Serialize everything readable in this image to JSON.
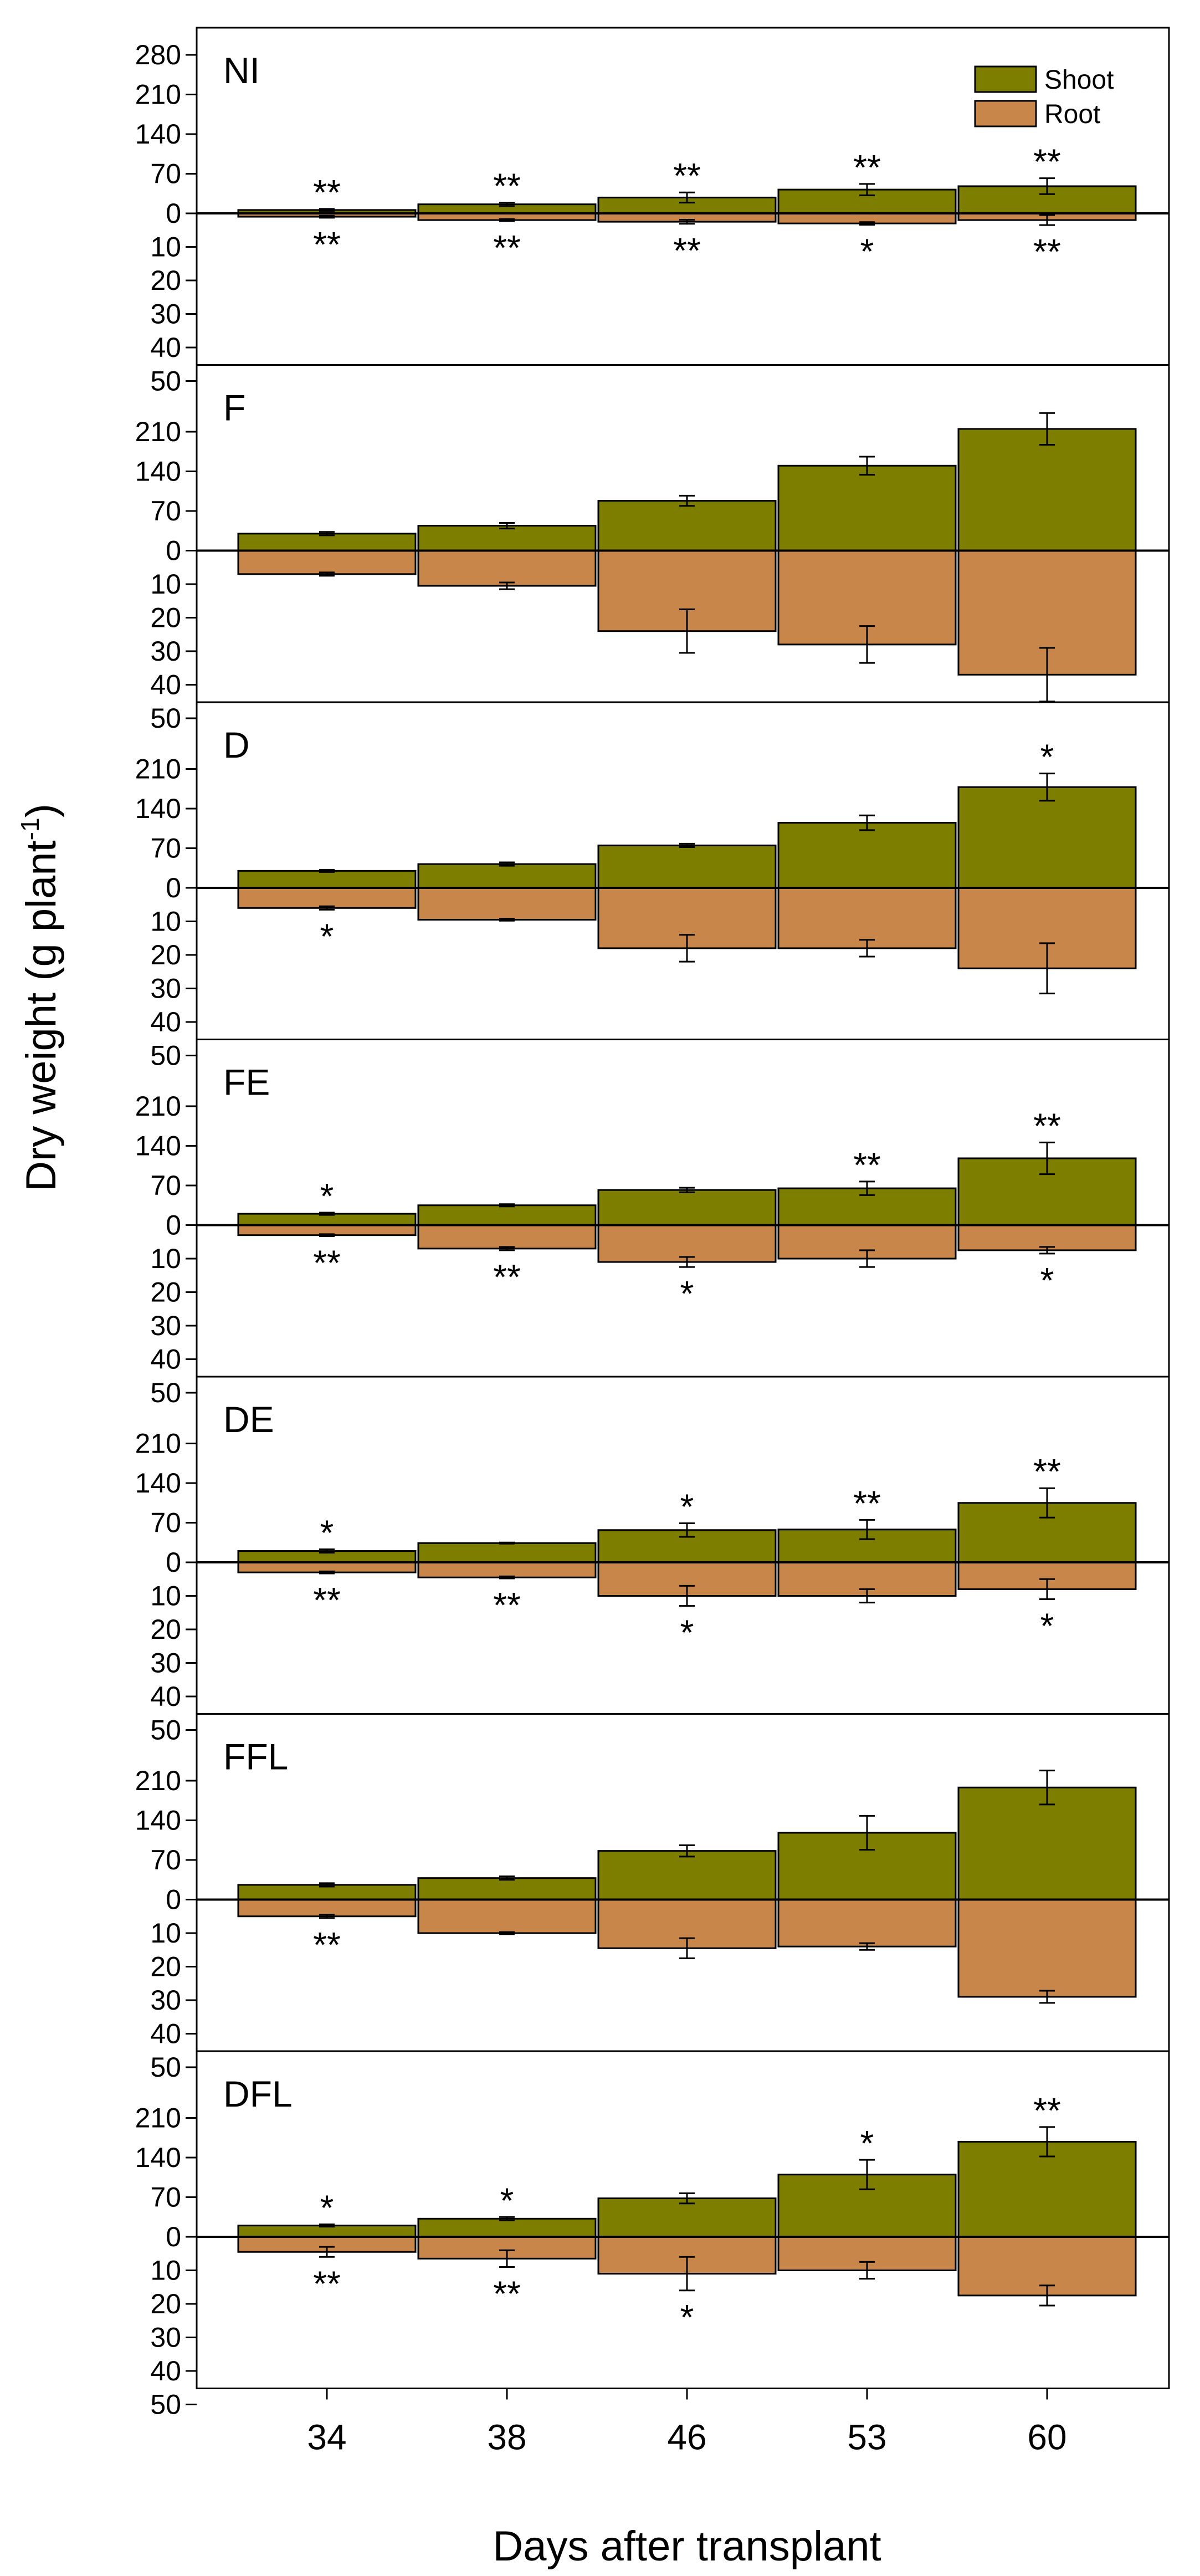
{
  "chart_data": {
    "type": "bar",
    "ylabel": "Dry weight (g plant",
    "ylabel_sup": "-1",
    "ylabel_close": ")",
    "xlabel": "Days after transplant",
    "categories": [
      "34",
      "38",
      "46",
      "53",
      "60"
    ],
    "legend": {
      "placement": "top-right",
      "shoot_label": "Shoot",
      "root_label": "Root"
    },
    "colors": {
      "shoot": "#7d7d00",
      "root": "#c8864a",
      "axis": "#000000"
    },
    "first_panel_shoot_ticks": [
      "280",
      "210",
      "140",
      "70",
      "0"
    ],
    "shoot_ticks": [
      "210",
      "140",
      "70",
      "0"
    ],
    "root_ticks": [
      "10",
      "20",
      "30",
      "40",
      "50"
    ],
    "shoot_range": [
      0,
      280
    ],
    "root_range": [
      0,
      50
    ],
    "panels": [
      {
        "label": "NI",
        "shoot": [
          6,
          16,
          28,
          42,
          48
        ],
        "shoot_err": [
          2,
          3,
          9,
          10,
          14
        ],
        "root": [
          1,
          2,
          2.5,
          3,
          2
        ],
        "root_err": [
          0.3,
          0.3,
          0.6,
          0.4,
          1.5
        ],
        "shoot_sig": [
          "**",
          "**",
          "**",
          "**",
          "**"
        ],
        "root_sig": [
          "**",
          "**",
          "**",
          "*",
          "**"
        ]
      },
      {
        "label": "F",
        "shoot": [
          30,
          44,
          88,
          150,
          215
        ],
        "shoot_err": [
          3,
          5,
          9,
          16,
          28
        ],
        "root": [
          7,
          10.5,
          24,
          28,
          37
        ],
        "root_err": [
          0.5,
          1,
          6.5,
          5.5,
          8
        ],
        "shoot_sig": [
          "",
          "",
          "",
          "",
          ""
        ],
        "root_sig": [
          "",
          "",
          "",
          "",
          ""
        ]
      },
      {
        "label": "D",
        "shoot": [
          30,
          42,
          75,
          115,
          178
        ],
        "shoot_err": [
          2,
          3,
          3,
          13,
          24
        ],
        "root": [
          6,
          9.5,
          18,
          18,
          24
        ],
        "root_err": [
          0.5,
          0.3,
          4,
          2.5,
          7.5
        ],
        "shoot_sig": [
          "",
          "",
          "",
          "",
          "*"
        ],
        "root_sig": [
          "*",
          "",
          "",
          "",
          ""
        ]
      },
      {
        "label": "FE",
        "shoot": [
          20,
          35,
          62,
          65,
          118
        ],
        "shoot_err": [
          2,
          2,
          4,
          12,
          28
        ],
        "root": [
          3,
          7,
          11,
          10,
          7.5
        ],
        "root_err": [
          0.3,
          0.5,
          1.5,
          2.5,
          1
        ],
        "shoot_sig": [
          "*",
          "",
          "",
          "**",
          "**"
        ],
        "root_sig": [
          "**",
          "**",
          "*",
          "",
          "*"
        ]
      },
      {
        "label": "DE",
        "shoot": [
          20,
          34,
          57,
          58,
          105
        ],
        "shoot_err": [
          3,
          1,
          12,
          17,
          26
        ],
        "root": [
          3,
          4.5,
          10,
          10,
          8
        ],
        "root_err": [
          0.3,
          0.3,
          3,
          2,
          3
        ],
        "shoot_sig": [
          "*",
          "",
          "*",
          "**",
          "**"
        ],
        "root_sig": [
          "**",
          "**",
          "*",
          "",
          "*"
        ]
      },
      {
        "label": "FFL",
        "shoot": [
          26,
          38,
          86,
          118,
          198
        ],
        "shoot_err": [
          3,
          3,
          10,
          30,
          30
        ],
        "root": [
          5,
          10,
          14.5,
          14,
          29
        ],
        "root_err": [
          0.5,
          0.3,
          3,
          1,
          1.8
        ],
        "shoot_sig": [
          "",
          "",
          "",
          "",
          ""
        ],
        "root_sig": [
          "**",
          "",
          "",
          "",
          ""
        ]
      },
      {
        "label": "DFL",
        "shoot": [
          20,
          32,
          68,
          110,
          168
        ],
        "shoot_err": [
          2,
          3,
          9,
          26,
          26
        ],
        "root": [
          4.5,
          6.5,
          11,
          10,
          17.5
        ],
        "root_err": [
          1.5,
          2.5,
          5,
          2.5,
          3
        ],
        "shoot_sig": [
          "*",
          "*",
          "",
          "*",
          "**"
        ],
        "root_sig": [
          "**",
          "**",
          "*",
          "",
          ""
        ]
      }
    ]
  }
}
